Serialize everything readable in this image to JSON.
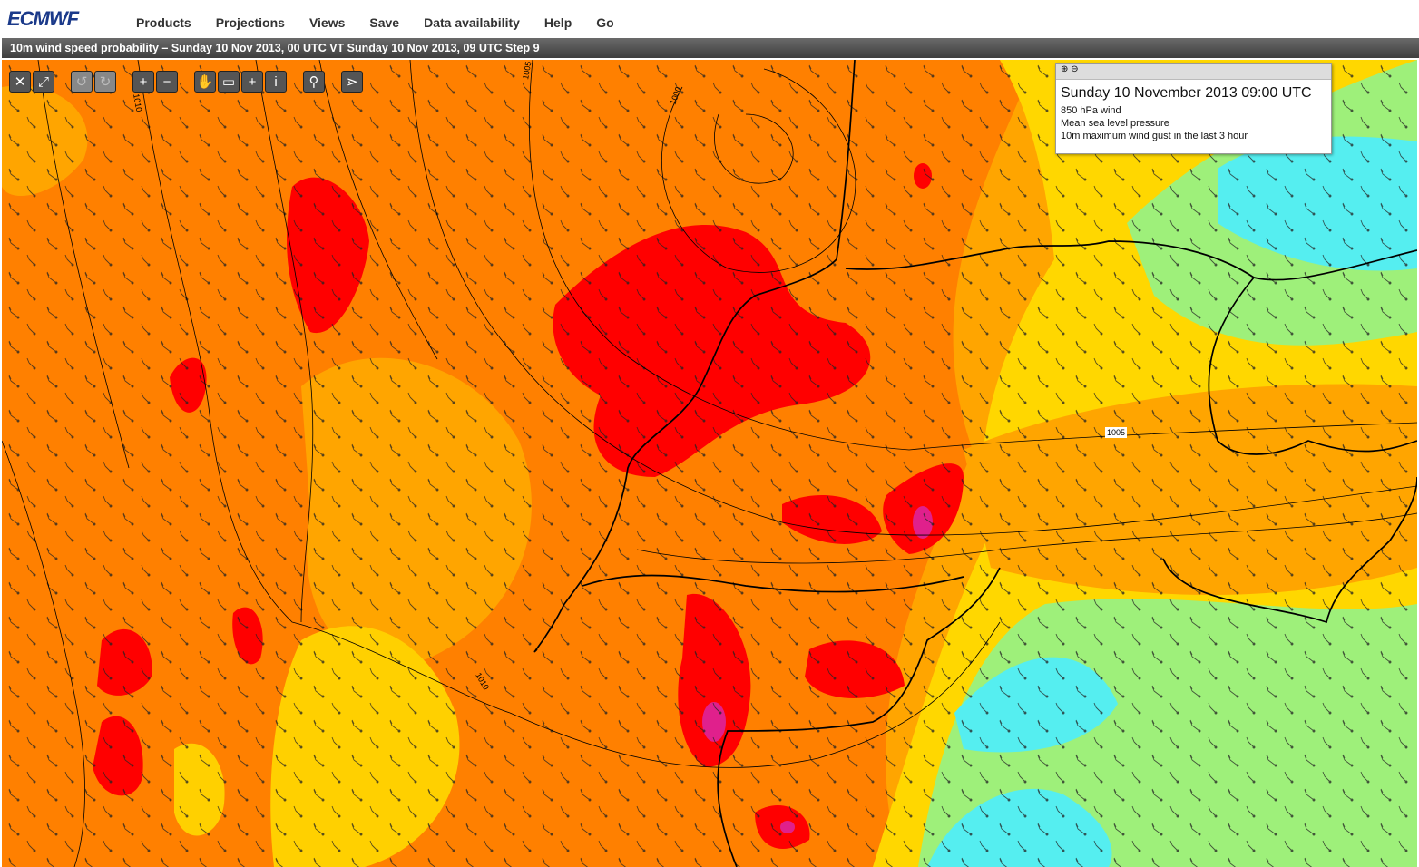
{
  "header": {
    "logo": "ECMWF",
    "menu": [
      "Products",
      "Projections",
      "Views",
      "Save",
      "Data availability",
      "Help",
      "Go"
    ]
  },
  "title_bar": "10m wind speed probability – Sunday 10 Nov 2013, 00 UTC VT Sunday 10 Nov 2013, 09 UTC Step 9",
  "legend": {
    "title": "Sunday 10 November 2013 09:00 UTC",
    "layers": [
      "850 hPa wind",
      "Mean sea level pressure",
      "10m maximum wind gust in the last 3 hour"
    ]
  },
  "map": {
    "contour_labels": [
      "1010",
      "1005",
      "1000",
      "1005",
      "1010"
    ]
  }
}
